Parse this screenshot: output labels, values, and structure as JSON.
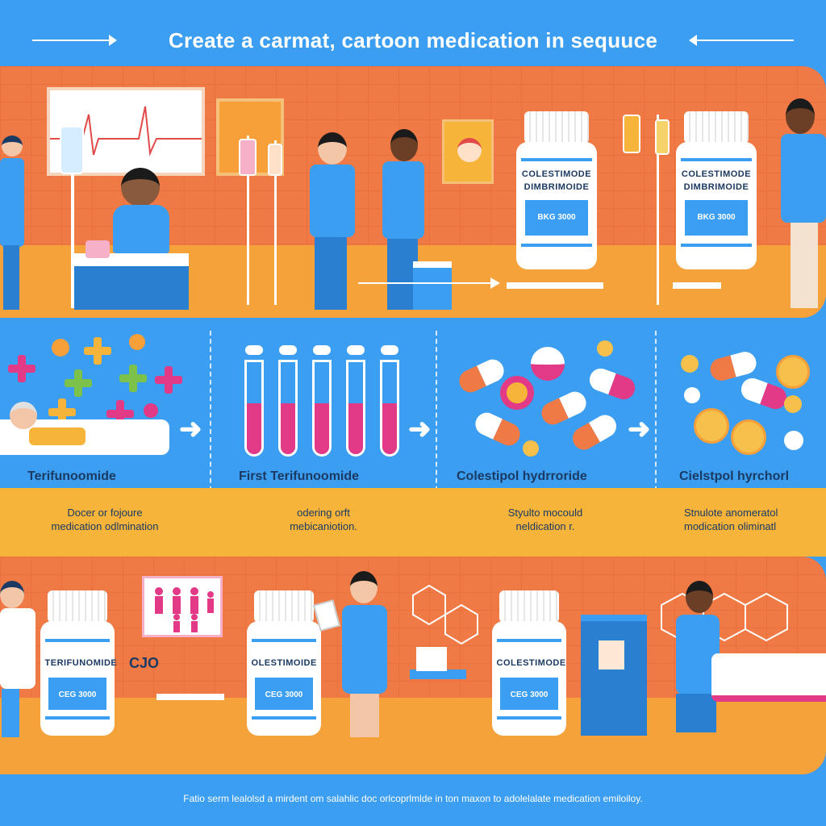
{
  "header": {
    "title": "Create a carmat, cartoon medication in sequuce"
  },
  "top_panel": {
    "bottle_left": {
      "name_line1": "COLESTIMODE",
      "name_line2": "DIMBRIMOIDE",
      "code": "BKG 3000"
    },
    "bottle_right": {
      "name_line1": "COLESTIMODE",
      "name_line2": "DIMBRIMOIDE",
      "code": "BKG 3000"
    }
  },
  "steps": [
    {
      "title": "Terifunoomide",
      "desc_line1": "Docer or fojoure",
      "desc_line2": "medication odlmination"
    },
    {
      "title": "First Terifunoomide",
      "desc_line1": "odering orft",
      "desc_line2": "mebicaniotion."
    },
    {
      "title": "Colestipol hydrroride",
      "desc_line1": "Styulto mocould",
      "desc_line2": "neldication r."
    },
    {
      "title": "Cielstpol hyrchorl",
      "desc_line1": "Stnulote anomeratol",
      "desc_line2": "modication oliminatl"
    }
  ],
  "bottom_panel": {
    "bottle_1": {
      "name_line1": "TERIFUNOMIDE",
      "code": "CEG 3000"
    },
    "bottle_2": {
      "name_line1": "OLESTIMOIDE",
      "code": "CEG 3000"
    },
    "bottle_3": {
      "name_line1": "COLESTIMODE",
      "code": "CEG 3000"
    },
    "side_label": "CJO"
  },
  "footer": {
    "text": "Fatio serm lealolsd a mirdent om salahlic doc orlcoprlmlde in ton maxon to adolelalate medication emiloiloy."
  },
  "colors": {
    "background_blue": "#3b9ef0",
    "wall_orange": "#f07a45",
    "floor_yellow": "#f6a23a",
    "band_yellow": "#f7b43a",
    "accent_pink": "#e23a86",
    "text_navy": "#1b3a63"
  }
}
